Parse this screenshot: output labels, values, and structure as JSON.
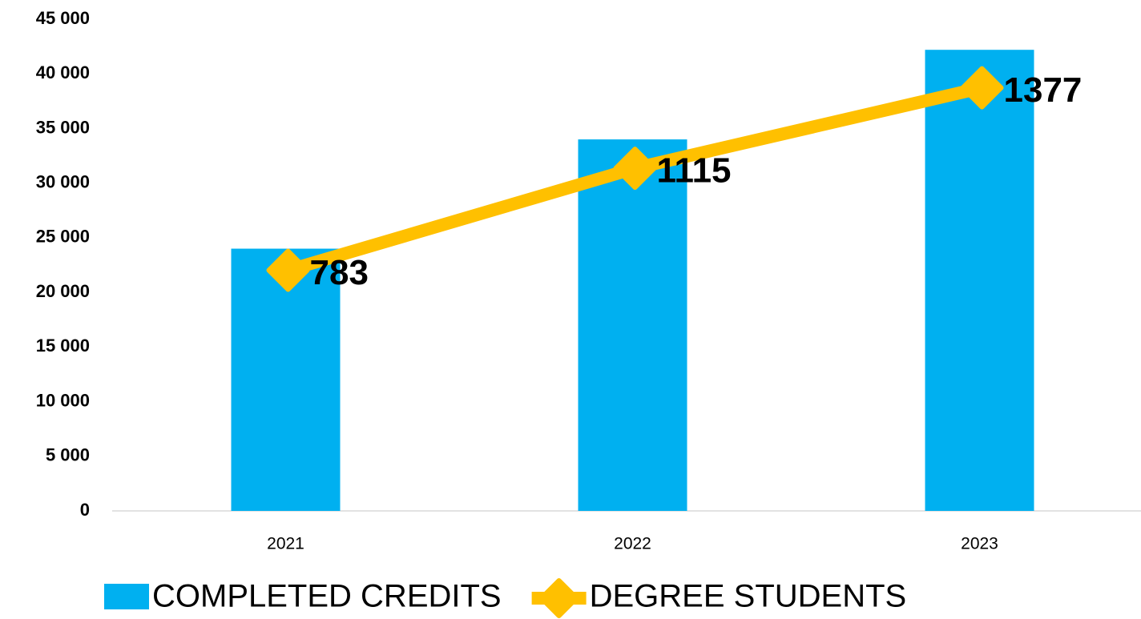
{
  "chart_data": {
    "type": "bar-line",
    "categories": [
      "2021",
      "2022",
      "2023"
    ],
    "series": [
      {
        "name": "COMPLETED CREDITS",
        "color": "#00b0f0",
        "type": "bar",
        "values": [
          24000,
          34000,
          42200
        ]
      },
      {
        "name": "DEGREE STUDENTS",
        "color": "#ffc000",
        "type": "line",
        "axis": "y2",
        "values": [
          783,
          1115,
          1377
        ]
      }
    ],
    "ylim": [
      0,
      45000
    ],
    "yticks": [
      0,
      {
        "value": 5000,
        "label": "5 000"
      },
      {
        "value": 10000,
        "label": "10 000"
      },
      {
        "value": 15000,
        "label": "15 000"
      },
      {
        "value": 20000,
        "label": "20 000"
      },
      {
        "value": 25000,
        "label": "25 000"
      },
      {
        "value": 30000,
        "label": "30 000"
      },
      {
        "value": 35000,
        "label": "35 000"
      },
      {
        "value": 40000,
        "label": "40 000"
      },
      {
        "value": 45000,
        "label": "45 000"
      }
    ],
    "y2lim": [
      0,
      1600
    ],
    "grid": false,
    "legend": "bottom"
  }
}
